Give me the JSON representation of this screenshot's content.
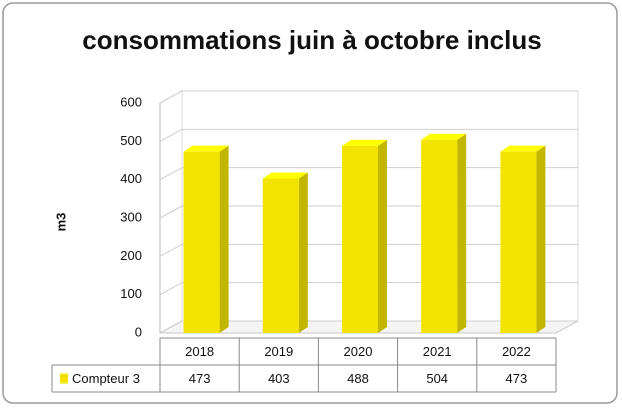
{
  "chart_data": {
    "type": "bar3d",
    "title": "consommations juin à octobre inclus",
    "y_label": "m3",
    "categories": [
      "2018",
      "2019",
      "2020",
      "2021",
      "2022"
    ],
    "series": [
      {
        "name": "Compteur 3",
        "color": "#f2e400",
        "values": [
          473,
          403,
          488,
          504,
          473
        ]
      }
    ],
    "ylim": [
      0,
      600
    ],
    "yticks": [
      0,
      100,
      200,
      300,
      400,
      500,
      600
    ],
    "grid": true,
    "data_table": true
  }
}
